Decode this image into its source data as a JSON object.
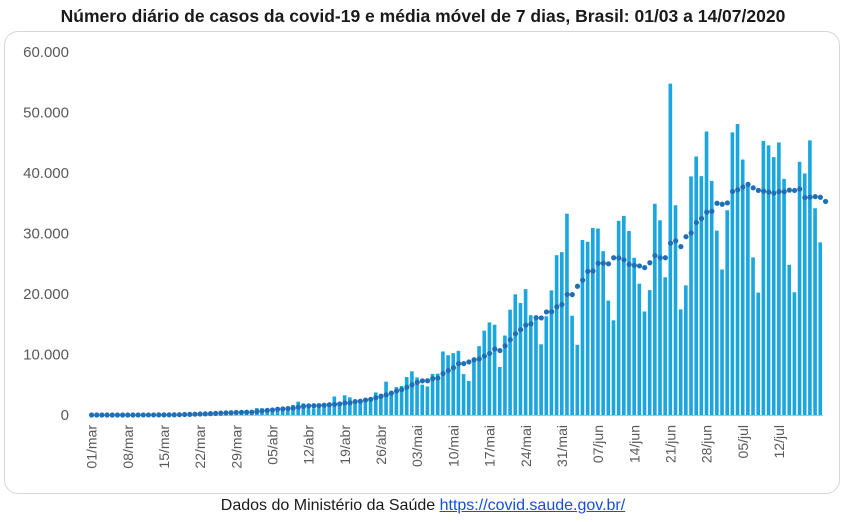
{
  "title": "Número diário de casos da covid-19 e média móvel de 7 dias, Brasil: 01/03 a 14/07/2020",
  "source_text": "Dados do Ministério da Saúde",
  "source_link": "https://covid.saude.gov.br/",
  "colors": {
    "bars": "#1aa6df",
    "moving_average": "#1f6fb8",
    "axis": "#bfbfbf"
  },
  "chart_data": {
    "type": "bar",
    "title": "Número diário de casos da covid-19 e média móvel de 7 dias, Brasil: 01/03 a 14/07/2020",
    "xlabel": "",
    "ylabel": "",
    "ylim": [
      0,
      60000
    ],
    "yticks": [
      0,
      10000,
      20000,
      30000,
      40000,
      50000,
      60000
    ],
    "ytick_labels": [
      "0",
      "10.000",
      "20.000",
      "30.000",
      "40.000",
      "50.000",
      "60.000"
    ],
    "xtick_labels": [
      "01/mar",
      "08/mar",
      "15/mar",
      "22/mar",
      "29/mar",
      "05/abr",
      "12/abr",
      "19/abr",
      "26/abr",
      "03/mai",
      "10/mai",
      "17/mai",
      "24/mai",
      "31/mai",
      "07/jun",
      "14/jun",
      "21/jun",
      "28/jun",
      "05/jul",
      "12/jul"
    ],
    "grid": false,
    "legend": "none",
    "series": [
      {
        "type": "bar",
        "values": [
          0,
          0,
          0,
          1,
          1,
          4,
          5,
          0,
          6,
          12,
          18,
          25,
          10,
          50,
          52,
          90,
          0,
          128,
          191,
          208,
          264,
          310,
          307,
          264,
          374,
          299,
          488,
          526,
          475,
          316,
          432,
          468,
          1138,
          1119,
          1076,
          1146,
          1222,
          852,
          926,
          1661,
          2210,
          1930,
          1781,
          1089,
          1442,
          1261,
          1832,
          3058,
          2105,
          3257,
          2917,
          2055,
          1927,
          2498,
          2678,
          3735,
          3503,
          5514,
          3379,
          4613,
          4789,
          6276,
          7218,
          6209,
          5015,
          4726,
          6794,
          6835,
          10503,
          9888,
          10222,
          10611,
          6760,
          5632,
          9258,
          11385,
          13944,
          15305,
          14919,
          7938,
          13140,
          17408,
          19951,
          18508,
          20803,
          16508,
          15813,
          11687,
          16324,
          20599,
          26417,
          26928,
          33274,
          16409,
          11598,
          28936,
          28633,
          30925,
          30830,
          27075,
          18912,
          15654,
          32091,
          32913,
          30412,
          25982,
          21704,
          17110,
          20647,
          34918,
          32188,
          22765,
          54771,
          34666,
          17459,
          21432,
          39436,
          42725,
          39483,
          46860,
          38693,
          30476,
          24052,
          33846,
          46712,
          48105,
          42223,
          37997,
          26051,
          20229,
          45305,
          44571,
          42619,
          45048,
          39023,
          24831,
          20286,
          41857,
          39924,
          45403,
          34177,
          28532
        ]
      },
      {
        "type": "scatter",
        "name": "média móvel de 7 dias",
        "values": [
          0,
          0,
          0,
          0,
          1,
          2,
          2,
          2,
          4,
          6,
          9,
          10,
          11,
          17,
          24,
          35,
          36,
          54,
          77,
          99,
          130,
          162,
          191,
          230,
          264,
          305,
          350,
          376,
          415,
          429,
          454,
          454,
          574,
          675,
          761,
          838,
          956,
          988,
          1069,
          1145,
          1306,
          1422,
          1521,
          1527,
          1558,
          1611,
          1697,
          1759,
          1828,
          1993,
          2011,
          2224,
          2270,
          2468,
          2596,
          2865,
          3075,
          3334,
          3613,
          3972,
          4194,
          4588,
          4987,
          5386,
          5646,
          5662,
          6016,
          6108,
          6834,
          7350,
          7809,
          8493,
          8499,
          8765,
          9132,
          9258,
          9738,
          10177,
          10906,
          10653,
          11430,
          12443,
          13438,
          14097,
          14848,
          15061,
          16087,
          16044,
          17035,
          17063,
          17895,
          18254,
          19930,
          19894,
          21283,
          22286,
          23744,
          23798,
          25085,
          25092,
          24991,
          25994,
          25963,
          25645,
          24893,
          24739,
          24640,
          24358,
          25169,
          26349,
          25982,
          25994,
          28396,
          28791,
          27833,
          29474,
          30100,
          31810,
          32479,
          33533,
          33675,
          35003,
          34836,
          35052,
          36947,
          37223,
          37672,
          38120,
          37549,
          37130,
          37003,
          36855,
          36658,
          36925,
          36900,
          37169,
          37118,
          37342,
          35929,
          36002,
          36090,
          35986,
          35299
        ]
      }
    ]
  }
}
